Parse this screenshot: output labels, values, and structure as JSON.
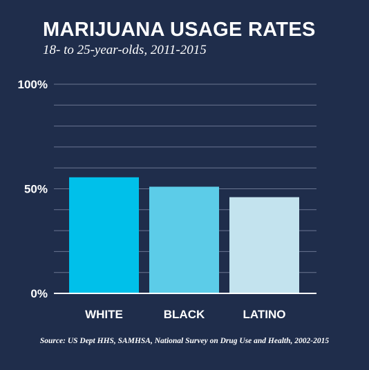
{
  "chart_data": {
    "type": "bar",
    "title": "MARIJUANA USAGE RATES",
    "subtitle": "18- to 25-year-olds, 2011-2015",
    "categories": [
      "WHITE",
      "BLACK",
      "LATINO"
    ],
    "values": [
      55.5,
      51,
      46
    ],
    "ylim": [
      0,
      100
    ],
    "yticks": [
      {
        "value": 0,
        "label": "0%"
      },
      {
        "value": 50,
        "label": "50%"
      },
      {
        "value": 100,
        "label": "100%"
      }
    ],
    "grid": true,
    "grid_step": 10,
    "bar_colors": [
      "#00c0ea",
      "#5ccce8",
      "#c3e3ee"
    ],
    "source": "Source: US Dept HHS, SAMHSA, National Survey on Drug Use and Health, 2002-2015"
  },
  "colors": {
    "background": "#1f2d4b",
    "gridline": "#6b7692",
    "baseline": "#ffffff",
    "text": "#ffffff"
  }
}
